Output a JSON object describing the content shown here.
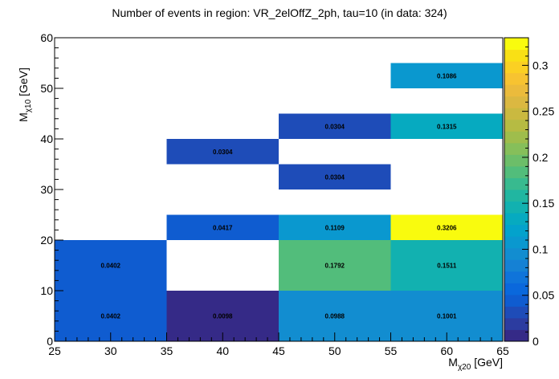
{
  "chart_data": {
    "type": "heatmap",
    "title": "Number of events in region: VR_2elOffZ_2ph, tau=10 (in data: 324)",
    "xlabel": {
      "base": "M",
      "sub": "χ20",
      "unit": " [GeV]"
    },
    "ylabel": {
      "base": "M",
      "sub": "χ10",
      "unit": " [GeV]"
    },
    "xlim": [
      25,
      65
    ],
    "ylim": [
      0,
      60
    ],
    "x_ticks": [
      25,
      30,
      35,
      40,
      45,
      50,
      55,
      60,
      65
    ],
    "y_ticks": [
      0,
      10,
      20,
      30,
      40,
      50,
      60
    ],
    "zlim": [
      0,
      0.33
    ],
    "z_ticks": [
      "0",
      "0.05",
      "0.1",
      "0.15",
      "0.2",
      "0.25",
      "0.3"
    ],
    "z_tick_values": [
      0,
      0.05,
      0.1,
      0.15,
      0.2,
      0.25,
      0.3
    ],
    "cells": [
      {
        "x0": 25,
        "x1": 35,
        "y0": 0,
        "y1": 10,
        "value": 0.0402,
        "label": "0.0402"
      },
      {
        "x0": 35,
        "x1": 45,
        "y0": 0,
        "y1": 10,
        "value": 0.0098,
        "label": "0.0098"
      },
      {
        "x0": 45,
        "x1": 55,
        "y0": 0,
        "y1": 10,
        "value": 0.0988,
        "label": "0.0988"
      },
      {
        "x0": 55,
        "x1": 65,
        "y0": 0,
        "y1": 10,
        "value": 0.1001,
        "label": "0.1001"
      },
      {
        "x0": 25,
        "x1": 35,
        "y0": 10,
        "y1": 20,
        "value": 0.0402,
        "label": "0.0402"
      },
      {
        "x0": 45,
        "x1": 55,
        "y0": 10,
        "y1": 20,
        "value": 0.1792,
        "label": "0.1792"
      },
      {
        "x0": 55,
        "x1": 65,
        "y0": 10,
        "y1": 20,
        "value": 0.1511,
        "label": "0.1511"
      },
      {
        "x0": 35,
        "x1": 45,
        "y0": 20,
        "y1": 25,
        "value": 0.0417,
        "label": "0.0417"
      },
      {
        "x0": 45,
        "x1": 55,
        "y0": 20,
        "y1": 25,
        "value": 0.1109,
        "label": "0.1109"
      },
      {
        "x0": 55,
        "x1": 65,
        "y0": 20,
        "y1": 25,
        "value": 0.3206,
        "label": "0.3206"
      },
      {
        "x0": 45,
        "x1": 55,
        "y0": 30,
        "y1": 35,
        "value": 0.0304,
        "label": "0.0304"
      },
      {
        "x0": 35,
        "x1": 45,
        "y0": 35,
        "y1": 40,
        "value": 0.0304,
        "label": "0.0304"
      },
      {
        "x0": 45,
        "x1": 55,
        "y0": 40,
        "y1": 45,
        "value": 0.0304,
        "label": "0.0304"
      },
      {
        "x0": 55,
        "x1": 65,
        "y0": 40,
        "y1": 45,
        "value": 0.1315,
        "label": "0.1315"
      },
      {
        "x0": 55,
        "x1": 65,
        "y0": 50,
        "y1": 55,
        "value": 0.1086,
        "label": "0.1086"
      }
    ],
    "palette": [
      "#352a87",
      "#2c3ca0",
      "#1e4cb8",
      "#0f5cd0",
      "#0a68dc",
      "#0f74da",
      "#1581d4",
      "#128dd0",
      "#0a98cf",
      "#03a2cc",
      "#06aac0",
      "#12b1b0",
      "#21b6a1",
      "#38ba8f",
      "#52bd7b",
      "#6cbe69",
      "#86bf5a",
      "#9fbd4c",
      "#b6bb43",
      "#cab940",
      "#dbb841",
      "#ebbb3c",
      "#f7c331",
      "#fbd023",
      "#f9e015",
      "#f9fb0e"
    ],
    "grid": false,
    "legend": "right colorbar"
  }
}
